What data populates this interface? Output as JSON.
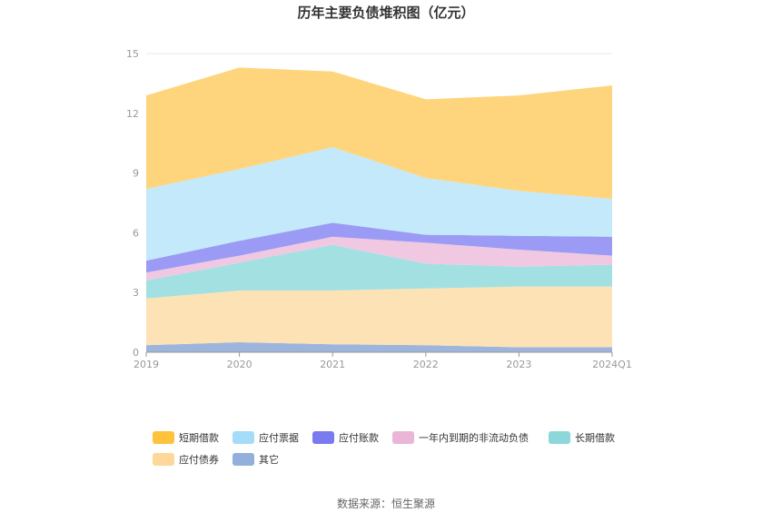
{
  "title": "历年主要负债堆积图（亿元）",
  "source": "数据来源：恒生聚源",
  "chart_data": {
    "type": "area",
    "stacked": true,
    "title": "历年主要负债堆积图（亿元）",
    "categories": [
      "2019",
      "2020",
      "2021",
      "2022",
      "2023",
      "2024Q1"
    ],
    "ylim": [
      0,
      15
    ],
    "yticks": [
      0,
      3,
      6,
      9,
      12,
      15
    ],
    "grid": true,
    "legend_position": "bottom",
    "series": [
      {
        "name": "其它",
        "color": "#9db5dc",
        "values": [
          0.35,
          0.5,
          0.4,
          0.35,
          0.25,
          0.25
        ]
      },
      {
        "name": "应付债券",
        "color": "#fde2b5",
        "values": [
          2.35,
          2.6,
          2.7,
          2.85,
          3.05,
          3.05
        ]
      },
      {
        "name": "长期借款",
        "color": "#a3e0e2",
        "values": [
          0.9,
          1.4,
          2.3,
          1.25,
          1.0,
          1.1
        ]
      },
      {
        "name": "一年内到期的非流动负债",
        "color": "#f0c8e2",
        "values": [
          0.4,
          0.35,
          0.4,
          1.05,
          0.85,
          0.45
        ]
      },
      {
        "name": "应付账款",
        "color": "#9b9bf5",
        "values": [
          0.6,
          0.75,
          0.7,
          0.4,
          0.7,
          0.95
        ]
      },
      {
        "name": "应付票据",
        "color": "#c4e9fb",
        "values": [
          3.6,
          3.6,
          3.8,
          2.85,
          2.25,
          1.9
        ]
      },
      {
        "name": "短期借款",
        "color": "#fed57d",
        "values": [
          4.7,
          5.1,
          3.8,
          3.95,
          4.8,
          5.7
        ]
      }
    ],
    "legend": [
      {
        "name": "短期借款",
        "color": "#fec23d"
      },
      {
        "name": "应付票据",
        "color": "#a5dcf8"
      },
      {
        "name": "应付账款",
        "color": "#7b7bf0"
      },
      {
        "name": "一年内到期的非流动负债",
        "color": "#eab6d8"
      },
      {
        "name": "长期借款",
        "color": "#8bd7da"
      },
      {
        "name": "应付债券",
        "color": "#fdd89a"
      },
      {
        "name": "其它",
        "color": "#93afdc"
      }
    ]
  }
}
